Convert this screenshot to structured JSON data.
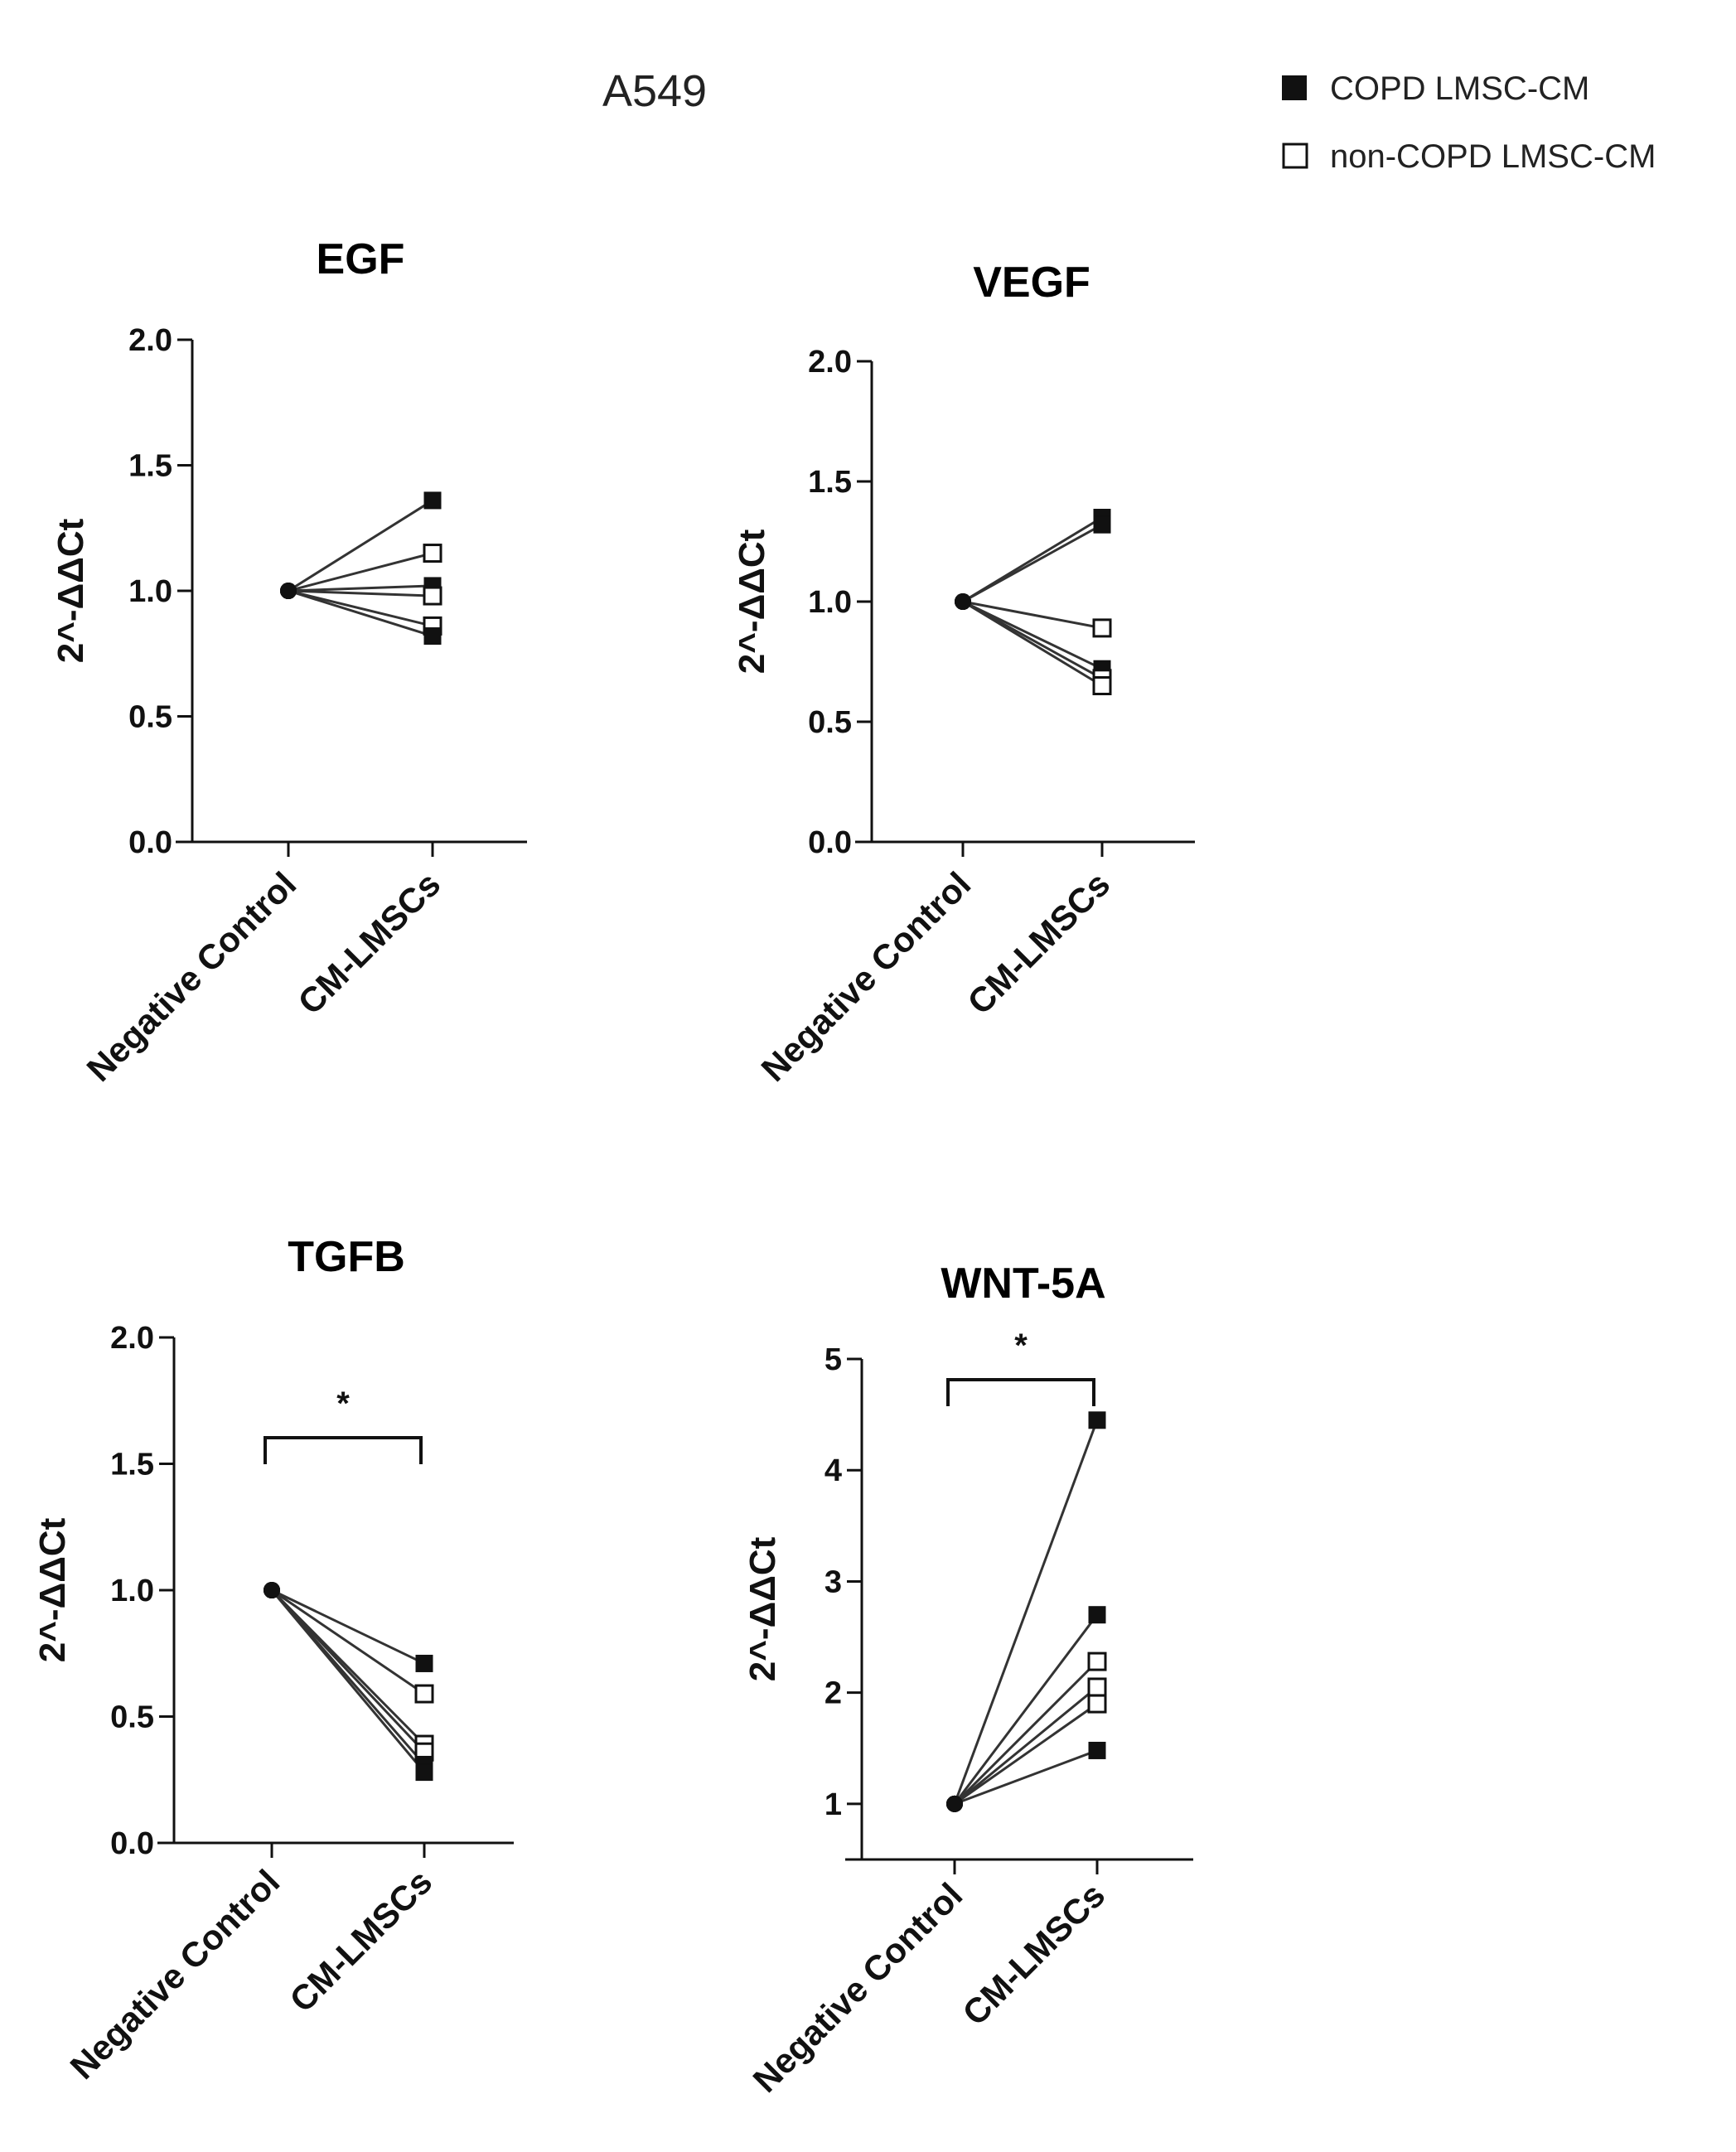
{
  "figure_title": "A549",
  "legend": {
    "copd_label": "COPD  LMSC-CM",
    "noncopd_label": "non-COPD  LMSC-CM"
  },
  "colors": {
    "ink": "#111111",
    "connector": "#333333",
    "background": "#ffffff"
  },
  "chart_data": [
    {
      "type": "line",
      "title": "EGF",
      "ylabel": "2^-ΔΔCt",
      "categories": [
        "Negative Control",
        "CM-LMSCs"
      ],
      "ylim": [
        0,
        2
      ],
      "yticks": [
        "0.0",
        "0.5",
        "1.0",
        "1.5",
        "2.0"
      ],
      "significance": null,
      "series": [
        {
          "name": "COPD 1",
          "group": "COPD",
          "values": [
            1.0,
            1.36
          ]
        },
        {
          "name": "non-COPD 1",
          "group": "non-COPD",
          "values": [
            1.0,
            1.15
          ]
        },
        {
          "name": "COPD 2",
          "group": "COPD",
          "values": [
            1.0,
            1.02
          ]
        },
        {
          "name": "non-COPD 2",
          "group": "non-COPD",
          "values": [
            1.0,
            0.98
          ]
        },
        {
          "name": "non-COPD 3",
          "group": "non-COPD",
          "values": [
            1.0,
            0.86
          ]
        },
        {
          "name": "COPD 3",
          "group": "COPD",
          "values": [
            1.0,
            0.82
          ]
        }
      ]
    },
    {
      "type": "line",
      "title": "VEGF",
      "ylabel": "2^-ΔΔCt",
      "categories": [
        "Negative Control",
        "CM-LMSCs"
      ],
      "ylim": [
        0,
        2
      ],
      "yticks": [
        "0.0",
        "0.5",
        "1.0",
        "1.5",
        "2.0"
      ],
      "significance": null,
      "series": [
        {
          "name": "COPD 1",
          "group": "COPD",
          "values": [
            1.0,
            1.35
          ]
        },
        {
          "name": "COPD 2",
          "group": "COPD",
          "values": [
            1.0,
            1.32
          ]
        },
        {
          "name": "non-COPD 1",
          "group": "non-COPD",
          "values": [
            1.0,
            0.89
          ]
        },
        {
          "name": "COPD 3",
          "group": "COPD",
          "values": [
            1.0,
            0.72
          ]
        },
        {
          "name": "non-COPD 2",
          "group": "non-COPD",
          "values": [
            1.0,
            0.68
          ]
        },
        {
          "name": "non-COPD 3",
          "group": "non-COPD",
          "values": [
            1.0,
            0.65
          ]
        }
      ]
    },
    {
      "type": "line",
      "title": "TGFB",
      "ylabel": "2^-ΔΔCt",
      "categories": [
        "Negative Control",
        "CM-LMSCs"
      ],
      "ylim": [
        0,
        2
      ],
      "yticks": [
        "0.0",
        "0.5",
        "1.0",
        "1.5",
        "2.0"
      ],
      "significance": {
        "label": "*",
        "level": 1.42
      },
      "series": [
        {
          "name": "COPD 1",
          "group": "COPD",
          "values": [
            1.0,
            0.71
          ]
        },
        {
          "name": "non-COPD 1",
          "group": "non-COPD",
          "values": [
            1.0,
            0.59
          ]
        },
        {
          "name": "non-COPD 2",
          "group": "non-COPD",
          "values": [
            1.0,
            0.39
          ]
        },
        {
          "name": "non-COPD 3",
          "group": "non-COPD",
          "values": [
            1.0,
            0.36
          ]
        },
        {
          "name": "COPD 2",
          "group": "COPD",
          "values": [
            1.0,
            0.31
          ]
        },
        {
          "name": "COPD 3",
          "group": "COPD",
          "values": [
            1.0,
            0.28
          ]
        }
      ]
    },
    {
      "type": "line",
      "title": "WNT-5A",
      "ylabel": "2^-ΔΔCt",
      "categories": [
        "Negative Control",
        "CM-LMSCs"
      ],
      "ylim": [
        0.5,
        5
      ],
      "yticks": [
        "1",
        "2",
        "3",
        "4",
        "5"
      ],
      "significance": {
        "label": "*",
        "level": 4.85
      },
      "series": [
        {
          "name": "COPD 1",
          "group": "COPD",
          "values": [
            1.0,
            4.45
          ]
        },
        {
          "name": "COPD 2",
          "group": "COPD",
          "values": [
            1.0,
            2.7
          ]
        },
        {
          "name": "non-COPD 1",
          "group": "non-COPD",
          "values": [
            1.0,
            2.28
          ]
        },
        {
          "name": "non-COPD 2",
          "group": "non-COPD",
          "values": [
            1.0,
            2.05
          ]
        },
        {
          "name": "non-COPD 3",
          "group": "non-COPD",
          "values": [
            1.0,
            1.9
          ]
        },
        {
          "name": "COPD 3",
          "group": "COPD",
          "values": [
            1.0,
            1.48
          ]
        }
      ]
    }
  ]
}
